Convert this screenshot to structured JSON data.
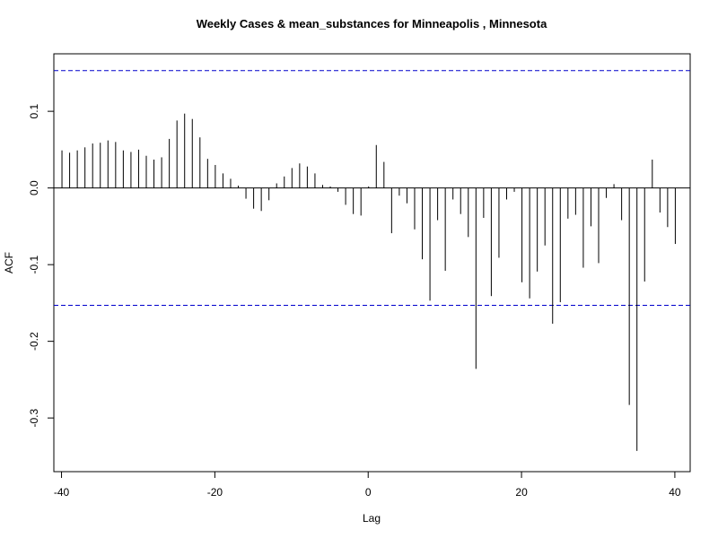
{
  "chart_data": {
    "type": "bar",
    "title": "Weekly Cases & mean_substances for Minneapolis , Minnesota",
    "xlabel": "Lag",
    "ylabel": "ACF",
    "xlim": [
      -41,
      42
    ],
    "ylim": [
      -0.37,
      0.175
    ],
    "x_ticks": [
      -40,
      -20,
      0,
      20,
      40
    ],
    "x_tick_labels": [
      "-40",
      "-20",
      "0",
      "20",
      "40"
    ],
    "y_ticks": [
      -0.3,
      -0.2,
      -0.1,
      0.0,
      0.1
    ],
    "y_tick_labels": [
      "-0.3",
      "-0.2",
      "-0.1",
      "0.0",
      "0.1"
    ],
    "confidence_bound": 0.153,
    "ci_color": "#0000cc",
    "lags": [
      -40,
      -39,
      -38,
      -37,
      -36,
      -35,
      -34,
      -33,
      -32,
      -31,
      -30,
      -29,
      -28,
      -27,
      -26,
      -25,
      -24,
      -23,
      -22,
      -21,
      -20,
      -19,
      -18,
      -17,
      -16,
      -15,
      -14,
      -13,
      -12,
      -11,
      -10,
      -9,
      -8,
      -7,
      -6,
      -5,
      -4,
      -3,
      -2,
      -1,
      0,
      1,
      2,
      3,
      4,
      5,
      6,
      7,
      8,
      9,
      10,
      11,
      12,
      13,
      14,
      15,
      16,
      17,
      18,
      19,
      20,
      21,
      22,
      23,
      24,
      25,
      26,
      27,
      28,
      29,
      30,
      31,
      32,
      33,
      34,
      35,
      36,
      37,
      38,
      39,
      40
    ],
    "acf": [
      0.049,
      0.046,
      0.049,
      0.053,
      0.058,
      0.059,
      0.062,
      0.06,
      0.049,
      0.047,
      0.05,
      0.042,
      0.037,
      0.04,
      0.064,
      0.088,
      0.097,
      0.09,
      0.066,
      0.038,
      0.03,
      0.019,
      0.012,
      0.003,
      -0.014,
      -0.027,
      -0.03,
      -0.016,
      0.006,
      0.015,
      0.026,
      0.032,
      0.028,
      0.019,
      0.004,
      0.002,
      -0.005,
      -0.022,
      -0.034,
      -0.036,
      0.002,
      0.056,
      0.034,
      -0.059,
      -0.01,
      -0.02,
      -0.054,
      -0.093,
      -0.147,
      -0.042,
      -0.108,
      -0.015,
      -0.034,
      -0.064,
      -0.236,
      -0.039,
      -0.141,
      -0.091,
      -0.015,
      -0.005,
      -0.123,
      -0.144,
      -0.109,
      -0.075,
      -0.177,
      -0.149,
      -0.04,
      -0.035,
      -0.104,
      -0.05,
      -0.098,
      -0.013,
      0.005,
      -0.042,
      -0.283,
      -0.343,
      -0.122,
      0.037,
      -0.032,
      -0.051,
      -0.073
    ]
  }
}
